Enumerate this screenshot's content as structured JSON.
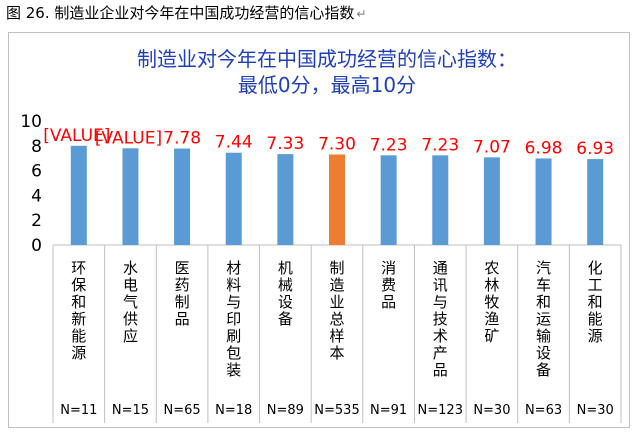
{
  "caption": "图 26. 制造业企业对今年在中国成功经营的信心指数",
  "caption_mark": "↵",
  "chart_data": {
    "type": "bar",
    "title_lines": [
      "制造业对今年在中国成功经营的信心指数：",
      "最低0分，最高10分"
    ],
    "categories": [
      "环保和新能源",
      "水电气供应",
      "医药制品",
      "材料与印刷包装",
      "机械设备",
      "制造业总样本",
      "消费品",
      "通讯与技术产品",
      "农林牧渔矿",
      "汽车和运输设备",
      "化工和能源"
    ],
    "values": [
      8.0,
      7.8,
      7.78,
      7.44,
      7.33,
      7.3,
      7.23,
      7.23,
      7.07,
      6.98,
      6.93
    ],
    "data_labels": [
      "[VALUE]",
      "[VALUE]",
      "7.78",
      "7.44",
      "7.33",
      "7.30",
      "7.23",
      "7.23",
      "7.07",
      "6.98",
      "6.93"
    ],
    "sample_sizes": [
      "N=11",
      "N=15",
      "N=65",
      "N=18",
      "N=89",
      "N=535",
      "N=91",
      "N=123",
      "N=30",
      "N=63",
      "N=30"
    ],
    "y_ticks": [
      "0",
      "2",
      "4",
      "6",
      "8",
      "10"
    ],
    "ylim": [
      0,
      10
    ],
    "highlight_index": 5,
    "colors": {
      "bar": "#5b9bd5",
      "highlight": "#ed7d31",
      "label": "#ff0000",
      "title": "#1f3fb8",
      "grid": "#bfbfbf"
    }
  }
}
